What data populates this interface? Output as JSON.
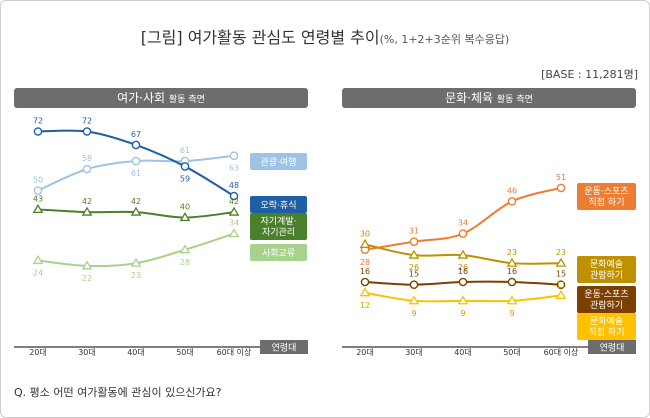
{
  "header": {
    "title": "[그림] 여가활동 관심도 연령별 추이",
    "subtitle": "(%, 1+2+3순위 복수응답)",
    "base": "[BASE : 11,281명]"
  },
  "panels": {
    "left": {
      "title": "여가·사회",
      "subtitle": "활동 측면"
    },
    "right": {
      "title": "문화·체육",
      "subtitle": "활동 측면"
    }
  },
  "question": "Q. 평소 어떤 여가활동에 관심이 있으신가요?",
  "axis_tag": "연령대",
  "chart_data": [
    {
      "type": "line",
      "panel": "left",
      "title": "여가·사회 활동 측면",
      "categories": [
        "20대",
        "30대",
        "40대",
        "50대",
        "60대 이상"
      ],
      "ylim": [
        0,
        80
      ],
      "series": [
        {
          "name": "관광·여행",
          "values": [
            50,
            58,
            61,
            61,
            63
          ],
          "color": "#9dc3e6",
          "marker": "circle",
          "legend": [
            "관광·여행"
          ]
        },
        {
          "name": "오락·휴식",
          "values": [
            72,
            72,
            67,
            59,
            48
          ],
          "color": "#1f5fa6",
          "marker": "circle",
          "legend": [
            "오락·휴식"
          ]
        },
        {
          "name": "자기계발·자기관리",
          "values": [
            43,
            42,
            42,
            40,
            42
          ],
          "color": "#4a7f2c",
          "marker": "triangle",
          "legend": [
            "자기계발·",
            "자기관리"
          ]
        },
        {
          "name": "사회교류",
          "values": [
            24,
            22,
            23,
            28,
            34
          ],
          "color": "#a9d18e",
          "marker": "triangle",
          "legend": [
            "사회교류"
          ]
        }
      ]
    },
    {
      "type": "line",
      "panel": "right",
      "title": "문화·체육 활동 측면",
      "categories": [
        "20대",
        "30대",
        "40대",
        "50대",
        "60대 이상"
      ],
      "ylim": [
        0,
        80
      ],
      "series": [
        {
          "name": "운동·스포츠 직접 하기",
          "values": [
            28,
            31,
            34,
            46,
            51
          ],
          "color": "#ed7d31",
          "marker": "circle",
          "legend": [
            "운동·스포츠",
            "직접 하기"
          ]
        },
        {
          "name": "문화예술 관람하기",
          "values": [
            30,
            26,
            26,
            23,
            23
          ],
          "color": "#bf9000",
          "marker": "triangle",
          "legend": [
            "문화예술",
            "관람하기"
          ]
        },
        {
          "name": "운동·스포츠 관람하기",
          "values": [
            16,
            15,
            16,
            16,
            15
          ],
          "color": "#7b3f00",
          "marker": "circle",
          "legend": [
            "운동·스포츠",
            "관람하기"
          ]
        },
        {
          "name": "문화예술 직접 하기",
          "values": [
            12,
            9,
            9,
            9,
            11
          ],
          "color": "#ffc000",
          "marker": "triangle",
          "legend": [
            "문화예술",
            "직접 하기"
          ]
        }
      ]
    }
  ]
}
